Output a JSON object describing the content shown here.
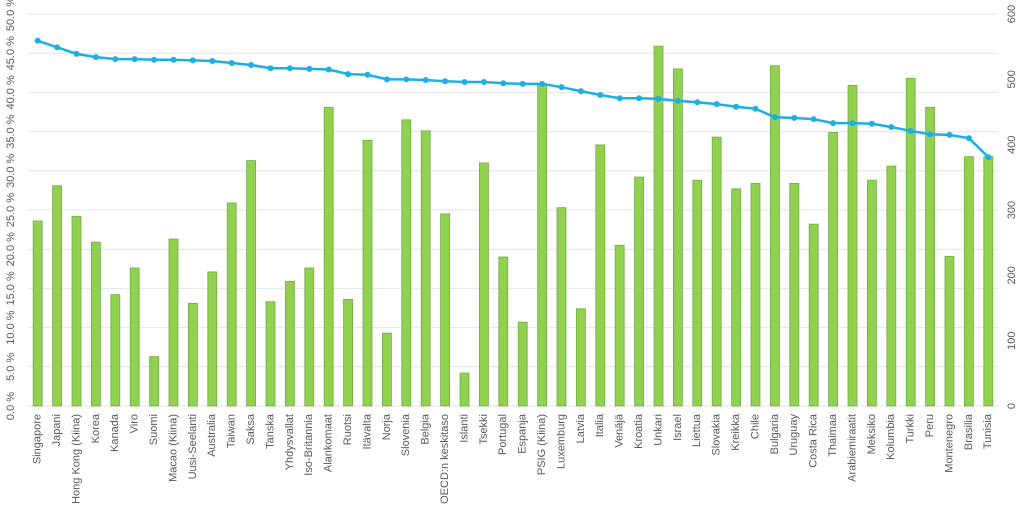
{
  "chart_data": {
    "type": "bar",
    "categories": [
      "Singapore",
      "Japani",
      "Hong Kong (Kiina)",
      "Korea",
      "Kanada",
      "Viro",
      "Suomi",
      "Macao (Kiina)",
      "Uusi-Seelanti",
      "Australia",
      "Taiwan",
      "Saksa",
      "Tanska",
      "Yhdysvallat",
      "Iso-Britannia",
      "Alankomaat",
      "Ruotsi",
      "Itävalta",
      "Norja",
      "Slovenia",
      "Belgia",
      "OECD:n keskitaso",
      "Islanti",
      "Tsekki",
      "Portugal",
      "Espanja",
      "PSIG (Kiina)",
      "Luxemburg",
      "Latvia",
      "Italia",
      "Venäjä",
      "Kroatia",
      "Unkari",
      "Israel",
      "Liettua",
      "Slovakia",
      "Kreikka",
      "Chile",
      "Bulgaria",
      "Uruguay",
      "Costa Rica",
      "Thaimaa",
      "Arabiemiraatit",
      "Meksiko",
      "Kolumbia",
      "Turkki",
      "Peru",
      "Montenegro",
      "Brasilia",
      "Tunisia"
    ],
    "series": [
      {
        "type": "bar",
        "color": "#92d050",
        "values": [
          23.6,
          28.1,
          24.2,
          20.9,
          14.2,
          17.6,
          6.3,
          21.3,
          13.1,
          17.1,
          25.9,
          31.3,
          13.3,
          15.9,
          17.6,
          38.1,
          13.6,
          33.9,
          9.3,
          36.5,
          35.1,
          24.5,
          4.2,
          31.0,
          19.0,
          10.7,
          41.1,
          25.3,
          12.4,
          33.3,
          20.5,
          29.2,
          45.9,
          43.0,
          28.8,
          34.3,
          27.7,
          28.4,
          43.4,
          28.4,
          23.2,
          34.9,
          40.9,
          28.8,
          30.6,
          41.8,
          38.1,
          19.1,
          31.8,
          31.8
        ]
      },
      {
        "type": "line",
        "axis": "y2",
        "color": "#1eaee6",
        "values": [
          559,
          549,
          539,
          534,
          531,
          531,
          530,
          530,
          529,
          528,
          525,
          522,
          517,
          517,
          516,
          515,
          508,
          507,
          500,
          500,
          499,
          497,
          496,
          496,
          494,
          493,
          493,
          488,
          482,
          476,
          471,
          471,
          470,
          467,
          465,
          462,
          458,
          455,
          442,
          441,
          439,
          433,
          433,
          432,
          427,
          421,
          416,
          415,
          410,
          381
        ]
      }
    ],
    "ylim": [
      0,
      50
    ],
    "yticks": [
      {
        "value": 0,
        "label": "0.0 %"
      },
      {
        "value": 5,
        "label": "5.0 %"
      },
      {
        "value": 10,
        "label": "10.0 %"
      },
      {
        "value": 15,
        "label": "15.0 %"
      },
      {
        "value": 20,
        "label": "20.0 %"
      },
      {
        "value": 25,
        "label": "25.0 %"
      },
      {
        "value": 30,
        "label": "30.0 %"
      },
      {
        "value": 35,
        "label": "35.0 %"
      },
      {
        "value": 40,
        "label": "40.0 %"
      },
      {
        "value": 45,
        "label": "45.0 %"
      },
      {
        "value": 50,
        "label": "50.0 %"
      }
    ],
    "y2lim": [
      0,
      600
    ],
    "y2ticks": [
      0,
      100,
      200,
      300,
      400,
      500,
      600
    ],
    "grid": true
  }
}
